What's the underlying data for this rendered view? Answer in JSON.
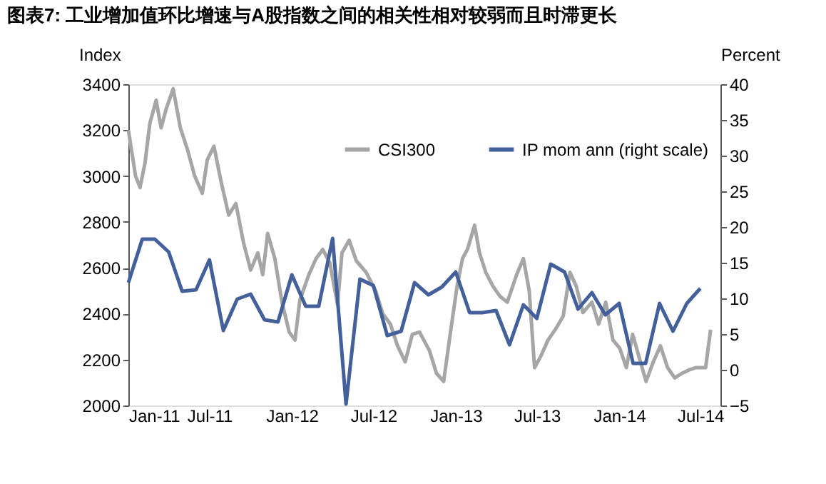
{
  "chart_data": {
    "type": "line",
    "title": "图表7: 工业增加值环比增速与A股指数之间的相关性相对较弱而且时滞更长",
    "ylabel": "Index",
    "y2label": "Percent",
    "xlim": [
      "2011-01-01",
      "2014-08-15"
    ],
    "xticks": [
      {
        "value": "2011-01-01",
        "label": "Jan-11"
      },
      {
        "value": "2011-07-01",
        "label": "Jul-11"
      },
      {
        "value": "2012-01-01",
        "label": "Jan-12"
      },
      {
        "value": "2012-07-01",
        "label": "Jul-12"
      },
      {
        "value": "2013-01-01",
        "label": "Jan-13"
      },
      {
        "value": "2013-07-01",
        "label": "Jul-13"
      },
      {
        "value": "2014-01-01",
        "label": "Jan-14"
      },
      {
        "value": "2014-07-01",
        "label": "Jul-14"
      }
    ],
    "ylim": [
      2000,
      3400
    ],
    "yticks": [
      2000,
      2200,
      2400,
      2600,
      2800,
      3000,
      3200,
      3400
    ],
    "y2lim": [
      -5,
      40
    ],
    "y2ticks": [
      -5,
      0,
      5,
      10,
      15,
      20,
      25,
      30,
      35,
      40
    ],
    "legend": "top",
    "grid": false,
    "marker": "none",
    "line_style": "solid",
    "series": [
      {
        "name": "CSI300",
        "color": "#a6a6a6",
        "x": [
          "2011-01-01",
          "2011-01-17",
          "2011-01-27",
          "2011-02-07",
          "2011-02-18",
          "2011-03-04",
          "2011-03-15",
          "2011-03-26",
          "2011-04-11",
          "2011-04-27",
          "2011-05-13",
          "2011-05-29",
          "2011-06-15",
          "2011-06-26",
          "2011-07-11",
          "2011-07-27",
          "2011-08-13",
          "2011-08-29",
          "2011-09-15",
          "2011-10-01",
          "2011-10-17",
          "2011-10-28",
          "2011-11-08",
          "2011-11-24",
          "2011-12-10",
          "2011-12-26",
          "2012-01-08",
          "2012-01-19",
          "2012-02-08",
          "2012-02-24",
          "2012-03-10",
          "2012-03-26",
          "2012-04-12",
          "2012-04-22",
          "2012-05-08",
          "2012-05-24",
          "2012-06-15",
          "2012-07-06",
          "2012-07-22",
          "2012-08-08",
          "2012-08-24",
          "2012-09-10",
          "2012-09-26",
          "2012-10-12",
          "2012-11-03",
          "2012-11-19",
          "2012-12-05",
          "2012-12-21",
          "2013-01-04",
          "2013-01-16",
          "2013-01-27",
          "2013-02-12",
          "2013-02-23",
          "2013-03-09",
          "2013-03-25",
          "2013-04-10",
          "2013-04-26",
          "2013-05-17",
          "2013-06-01",
          "2013-06-14",
          "2013-06-26",
          "2013-07-10",
          "2013-07-26",
          "2013-08-11",
          "2013-08-29",
          "2013-09-13",
          "2013-09-27",
          "2013-10-12",
          "2013-11-01",
          "2013-11-16",
          "2013-12-02",
          "2013-12-18",
          "2014-01-02",
          "2014-01-17",
          "2014-01-31",
          "2014-02-16",
          "2014-03-02",
          "2014-03-18",
          "2014-04-03",
          "2014-04-19",
          "2014-05-05",
          "2014-05-21",
          "2014-06-06",
          "2014-06-22",
          "2014-07-13",
          "2014-07-24"
        ],
        "values": [
          3200,
          3000,
          2950,
          3056,
          3230,
          3330,
          3210,
          3290,
          3380,
          3210,
          3115,
          3000,
          2925,
          3070,
          3130,
          2975,
          2830,
          2880,
          2710,
          2590,
          2665,
          2570,
          2750,
          2640,
          2450,
          2320,
          2285,
          2460,
          2570,
          2640,
          2680,
          2620,
          2440,
          2665,
          2720,
          2630,
          2580,
          2500,
          2400,
          2355,
          2260,
          2190,
          2310,
          2320,
          2240,
          2140,
          2105,
          2330,
          2520,
          2640,
          2680,
          2785,
          2665,
          2580,
          2520,
          2475,
          2450,
          2570,
          2640,
          2500,
          2165,
          2215,
          2285,
          2330,
          2390,
          2580,
          2520,
          2405,
          2450,
          2355,
          2450,
          2285,
          2250,
          2165,
          2310,
          2200,
          2105,
          2190,
          2260,
          2165,
          2120,
          2140,
          2155,
          2165,
          2165,
          2330
        ]
      },
      {
        "name": "IP mom ann (right scale)",
        "color": "#44609a",
        "axis": "y2",
        "x": [
          "2011-01-01",
          "2011-02-01",
          "2011-03-01",
          "2011-04-01",
          "2011-05-01",
          "2011-06-01",
          "2011-07-01",
          "2011-08-01",
          "2011-09-01",
          "2011-10-01",
          "2011-11-01",
          "2011-12-01",
          "2012-01-01",
          "2012-02-01",
          "2012-03-01",
          "2012-04-01",
          "2012-05-01",
          "2012-06-01",
          "2012-07-01",
          "2012-08-01",
          "2012-09-01",
          "2012-10-01",
          "2012-11-01",
          "2012-12-01",
          "2013-01-01",
          "2013-02-01",
          "2013-03-01",
          "2013-04-01",
          "2013-05-01",
          "2013-06-01",
          "2013-07-01",
          "2013-08-01",
          "2013-09-01",
          "2013-10-01",
          "2013-11-01",
          "2013-12-01",
          "2014-01-01",
          "2014-02-01",
          "2014-03-01",
          "2014-04-01",
          "2014-05-01",
          "2014-06-01",
          "2014-07-01"
        ],
        "values": [
          12.2,
          18.3,
          18.3,
          16.5,
          11.0,
          11.2,
          15.4,
          5.5,
          9.9,
          10.6,
          7.0,
          6.7,
          13.3,
          8.9,
          8.9,
          18.4,
          -4.8,
          12.7,
          11.8,
          4.8,
          5.4,
          12.2,
          10.5,
          11.6,
          13.7,
          8.0,
          8.0,
          8.3,
          3.5,
          9.1,
          7.2,
          14.8,
          13.7,
          8.5,
          10.8,
          7.7,
          9.3,
          0.9,
          0.9,
          9.3,
          5.4,
          9.3,
          11.4
        ]
      }
    ]
  }
}
